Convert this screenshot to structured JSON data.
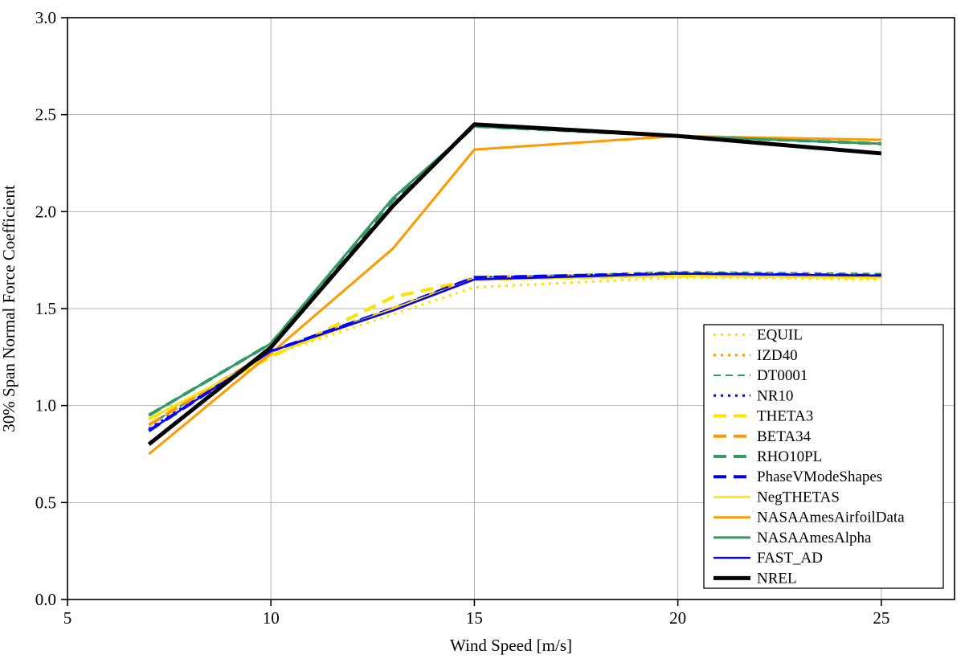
{
  "chart_data": {
    "type": "line",
    "title": "",
    "xlabel": "Wind Speed [m/s]",
    "ylabel": "30% Span Normal Force Coefficient",
    "xlim": [
      5,
      26.8
    ],
    "ylim": [
      0,
      3
    ],
    "xticks": [
      5,
      10,
      15,
      20,
      25
    ],
    "xtick_labels": [
      "5",
      "10",
      "15",
      "20",
      "25"
    ],
    "yticks": [
      0,
      0.5,
      1,
      1.5,
      2,
      2.5,
      3
    ],
    "ytick_labels": [
      "0.0",
      "0.5",
      "1.0",
      "1.5",
      "2.0",
      "2.5",
      "3.0"
    ],
    "grid": true,
    "legend_position": "right-middle",
    "x": [
      7,
      10,
      13,
      15,
      20,
      25
    ],
    "series": [
      {
        "name": "EQUIL",
        "color": "#ffe100",
        "style": "dot",
        "width": 3,
        "values": [
          0.93,
          1.26,
          1.47,
          1.61,
          1.66,
          1.65
        ]
      },
      {
        "name": "IZD40",
        "color": "#ff9900",
        "style": "dot",
        "width": 3,
        "values": [
          0.9,
          1.28,
          1.5,
          1.66,
          1.68,
          1.67
        ]
      },
      {
        "name": "DT0001",
        "color": "#339966",
        "style": "dash",
        "width": 2,
        "values": [
          0.9,
          1.28,
          1.5,
          1.66,
          1.69,
          1.68
        ]
      },
      {
        "name": "NR10",
        "color": "#0000ff",
        "style": "dot",
        "width": 3,
        "values": [
          0.88,
          1.28,
          1.5,
          1.66,
          1.68,
          1.67
        ]
      },
      {
        "name": "THETA3",
        "color": "#ffe100",
        "style": "longdash",
        "width": 4,
        "values": [
          0.93,
          1.25,
          1.56,
          1.65,
          1.67,
          1.66
        ]
      },
      {
        "name": "BETA34",
        "color": "#ff9900",
        "style": "longdash",
        "width": 4,
        "values": [
          0.9,
          1.28,
          1.5,
          1.66,
          1.68,
          1.67
        ]
      },
      {
        "name": "RHO10PL",
        "color": "#339966",
        "style": "longdash",
        "width": 4,
        "values": [
          0.95,
          1.32,
          2.06,
          2.44,
          2.39,
          2.35
        ]
      },
      {
        "name": "PhaseVModeShapes",
        "color": "#0000ff",
        "style": "longdash",
        "width": 4,
        "values": [
          0.87,
          1.28,
          1.5,
          1.66,
          1.68,
          1.67
        ]
      },
      {
        "name": "NegTHETAS",
        "color": "#ffe100",
        "style": "solid",
        "width": 2.5,
        "values": [
          0.93,
          1.26,
          1.5,
          1.65,
          1.67,
          1.66
        ]
      },
      {
        "name": "NASAAmesAirfoilData",
        "color": "#ff9900",
        "style": "solid",
        "width": 3,
        "values": [
          0.75,
          1.27,
          1.81,
          2.32,
          2.39,
          2.37
        ]
      },
      {
        "name": "NASAAmesAlpha",
        "color": "#339966",
        "style": "solid",
        "width": 3,
        "values": [
          0.95,
          1.32,
          2.07,
          2.44,
          2.39,
          2.35
        ]
      },
      {
        "name": "FAST_AD",
        "color": "#0000ff",
        "style": "solid",
        "width": 2.5,
        "values": [
          0.87,
          1.28,
          1.49,
          1.65,
          1.68,
          1.67
        ]
      },
      {
        "name": "NREL",
        "color": "#000000",
        "style": "solid",
        "width": 5,
        "values": [
          0.8,
          1.3,
          2.03,
          2.45,
          2.39,
          2.3
        ]
      }
    ],
    "grid_color": "#b3b3b3",
    "axis_color": "#000000"
  }
}
